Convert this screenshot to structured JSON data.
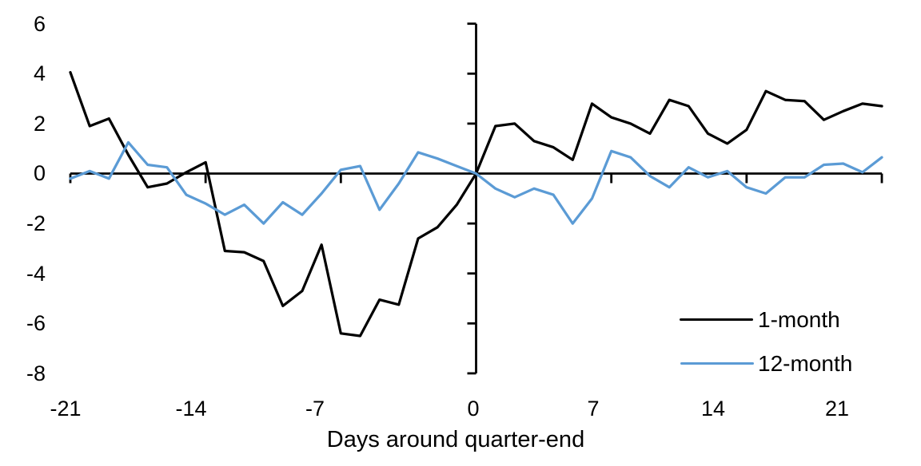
{
  "chart_data": {
    "type": "line",
    "x": [
      -21,
      -20,
      -19,
      -18,
      -17,
      -16,
      -15,
      -14,
      -13,
      -12,
      -11,
      -10,
      -9,
      -8,
      -7,
      -6,
      -5,
      -4,
      -3,
      -2,
      -1,
      0,
      1,
      2,
      3,
      4,
      5,
      6,
      7,
      8,
      9,
      10,
      11,
      12,
      13,
      14,
      15,
      16,
      17,
      18,
      19,
      20,
      21
    ],
    "series": [
      {
        "name": "1-month",
        "color": "#000000",
        "values": [
          4.05,
          1.9,
          2.2,
          0.75,
          -0.55,
          -0.4,
          0.05,
          0.45,
          -3.1,
          -3.15,
          -3.5,
          -5.3,
          -4.7,
          -2.85,
          -6.4,
          -6.5,
          -5.05,
          -5.25,
          -2.6,
          -2.15,
          -1.25,
          0,
          1.9,
          2.0,
          1.3,
          1.05,
          0.55,
          2.8,
          2.25,
          2.0,
          1.6,
          2.95,
          2.7,
          1.6,
          1.2,
          1.75,
          3.3,
          2.95,
          2.9,
          2.15,
          2.5,
          2.8,
          2.7
        ]
      },
      {
        "name": "12-month",
        "color": "#5B9BD5",
        "values": [
          -0.2,
          0.1,
          -0.2,
          1.25,
          0.35,
          0.25,
          -0.85,
          -1.2,
          -1.65,
          -1.25,
          -2.0,
          -1.15,
          -1.65,
          -0.8,
          0.15,
          0.3,
          -1.45,
          -0.4,
          0.85,
          0.6,
          0.3,
          0,
          -0.6,
          -0.95,
          -0.6,
          -0.85,
          -2.0,
          -1.0,
          0.9,
          0.65,
          -0.1,
          -0.55,
          0.25,
          -0.15,
          0.1,
          -0.55,
          -0.8,
          -0.15,
          -0.15,
          0.35,
          0.4,
          0.05,
          0.65
        ]
      }
    ],
    "title": "",
    "xlabel": "Days around quarter-end",
    "ylabel": "",
    "xlim": [
      -21,
      21
    ],
    "ylim": [
      -8,
      6
    ],
    "grid": false,
    "x_axis": {
      "tick_values": [
        -21,
        -14,
        -7,
        0,
        7,
        14,
        21
      ],
      "tick_labels": [
        "-21",
        "-14",
        "-7",
        "0",
        "7",
        "14",
        "21"
      ]
    },
    "y_axis": {
      "tick_values": [
        6,
        4,
        2,
        0,
        -2,
        -4,
        -6,
        -8
      ],
      "tick_labels": [
        "6",
        "4",
        "2",
        "0",
        "-2",
        "-4",
        "-6",
        "-8"
      ]
    },
    "legend": {
      "position": "bottom-right",
      "entries": [
        {
          "label": "1-month",
          "color": "#000000"
        },
        {
          "label": "12-month",
          "color": "#5B9BD5"
        }
      ]
    }
  }
}
